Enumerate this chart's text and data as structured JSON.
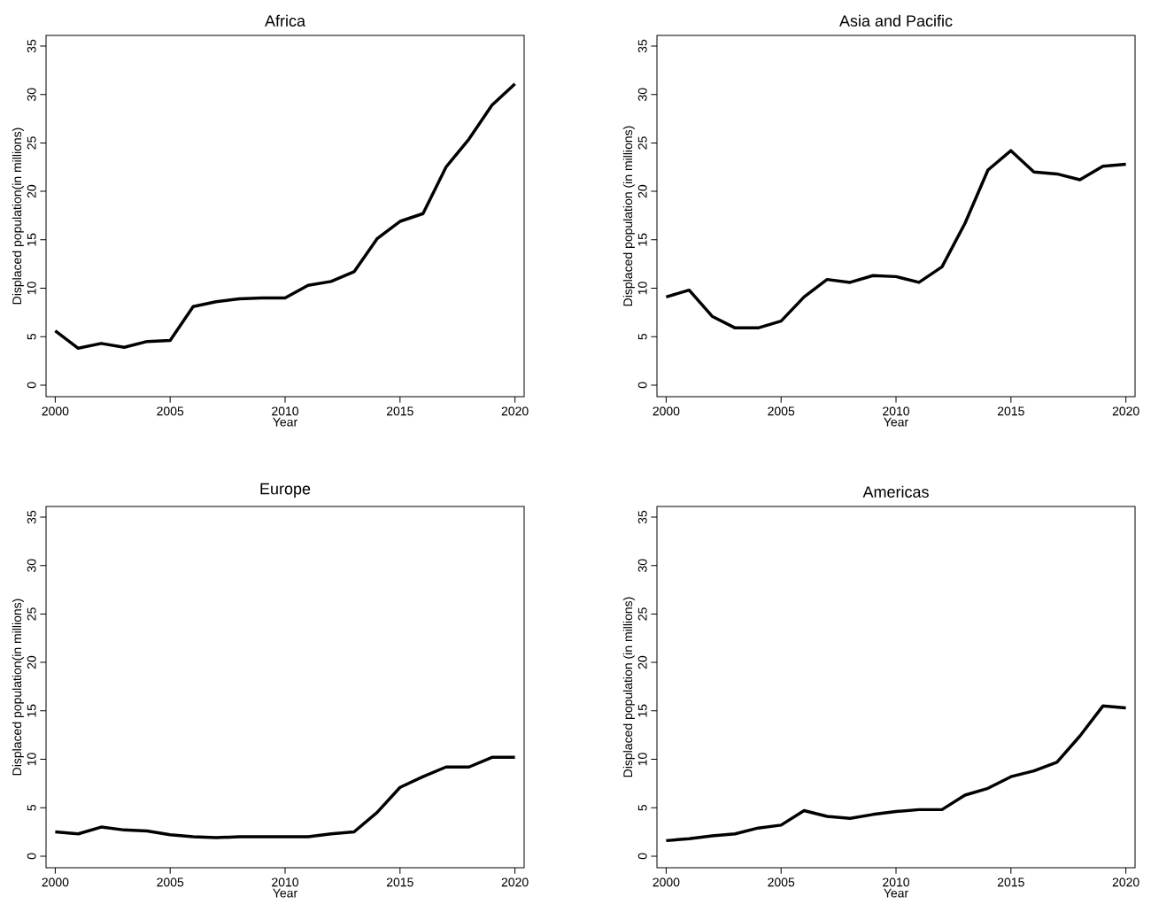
{
  "chart_data": [
    {
      "type": "line",
      "title": "Africa",
      "xlabel": "Year",
      "ylabel": "Displaced population(in millions)",
      "x": [
        2000,
        2001,
        2002,
        2003,
        2004,
        2005,
        2006,
        2007,
        2008,
        2009,
        2010,
        2011,
        2012,
        2013,
        2014,
        2015,
        2016,
        2017,
        2018,
        2019,
        2020
      ],
      "series": [
        {
          "color": "#000000",
          "values": [
            5.6,
            3.8,
            4.3,
            3.9,
            4.5,
            4.6,
            8.1,
            8.6,
            8.9,
            9.0,
            9.0,
            10.3,
            10.7,
            11.7,
            15.1,
            16.9,
            17.7,
            22.5,
            25.4,
            28.9,
            31.1
          ]
        }
      ],
      "line_style": "solid",
      "xlim": [
        1999.6,
        2020.4
      ],
      "ylim": [
        -1.2,
        36.1
      ],
      "xticks": [
        2000,
        2005,
        2010,
        2015,
        2020
      ],
      "yticks": [
        0,
        5,
        10,
        15,
        20,
        25,
        30,
        35
      ]
    },
    {
      "type": "line",
      "title": "Asia and Pacific",
      "xlabel": "Year",
      "ylabel": "Displaced population (in millions)",
      "x": [
        2000,
        2001,
        2002,
        2003,
        2004,
        2005,
        2006,
        2007,
        2008,
        2009,
        2010,
        2011,
        2012,
        2013,
        2014,
        2015,
        2016,
        2017,
        2018,
        2019,
        2020
      ],
      "series": [
        {
          "color": "#000000",
          "values": [
            9.1,
            9.8,
            7.1,
            5.9,
            5.9,
            6.6,
            9.1,
            10.9,
            10.6,
            11.3,
            11.2,
            10.6,
            12.2,
            16.7,
            22.2,
            24.2,
            22.0,
            21.8,
            21.2,
            22.6,
            22.8
          ]
        }
      ],
      "line_style": "solid",
      "xlim": [
        1999.6,
        2020.4
      ],
      "ylim": [
        -1.2,
        36.1
      ],
      "xticks": [
        2000,
        2005,
        2010,
        2015,
        2020
      ],
      "yticks": [
        0,
        5,
        10,
        15,
        20,
        25,
        30,
        35
      ]
    },
    {
      "type": "line",
      "title": "Europe",
      "xlabel": "Year",
      "ylabel": "Displaced population(in millions)",
      "x": [
        2000,
        2001,
        2002,
        2003,
        2004,
        2005,
        2006,
        2007,
        2008,
        2009,
        2010,
        2011,
        2012,
        2013,
        2014,
        2015,
        2016,
        2017,
        2018,
        2019,
        2020
      ],
      "series": [
        {
          "color": "#000000",
          "values": [
            2.5,
            2.3,
            3.0,
            2.7,
            2.6,
            2.2,
            2.0,
            1.9,
            2.0,
            2.0,
            2.0,
            2.0,
            2.3,
            2.5,
            4.5,
            7.1,
            8.2,
            9.2,
            9.2,
            10.2,
            10.2
          ]
        }
      ],
      "line_style": "solid",
      "xlim": [
        1999.6,
        2020.4
      ],
      "ylim": [
        -1.2,
        36.1
      ],
      "xticks": [
        2000,
        2005,
        2010,
        2015,
        2020
      ],
      "yticks": [
        0,
        5,
        10,
        15,
        20,
        25,
        30,
        35
      ]
    },
    {
      "type": "line",
      "title": "Americas",
      "xlabel": "Year",
      "ylabel": "Displaced population (in millions)",
      "x": [
        2000,
        2001,
        2002,
        2003,
        2004,
        2005,
        2006,
        2007,
        2008,
        2009,
        2010,
        2011,
        2012,
        2013,
        2014,
        2015,
        2016,
        2017,
        2018,
        2019,
        2020
      ],
      "series": [
        {
          "color": "#000000",
          "values": [
            1.6,
            1.8,
            2.1,
            2.3,
            2.9,
            3.2,
            4.7,
            4.1,
            3.9,
            4.3,
            4.6,
            4.8,
            4.8,
            6.3,
            7.0,
            8.2,
            8.8,
            9.7,
            12.4,
            15.5,
            15.3
          ]
        }
      ],
      "line_style": "solid",
      "xlim": [
        1999.6,
        2020.4
      ],
      "ylim": [
        -1.2,
        36.1
      ],
      "xticks": [
        2000,
        2005,
        2010,
        2015,
        2020
      ],
      "yticks": [
        0,
        5,
        10,
        15,
        20,
        25,
        30,
        35
      ]
    }
  ]
}
